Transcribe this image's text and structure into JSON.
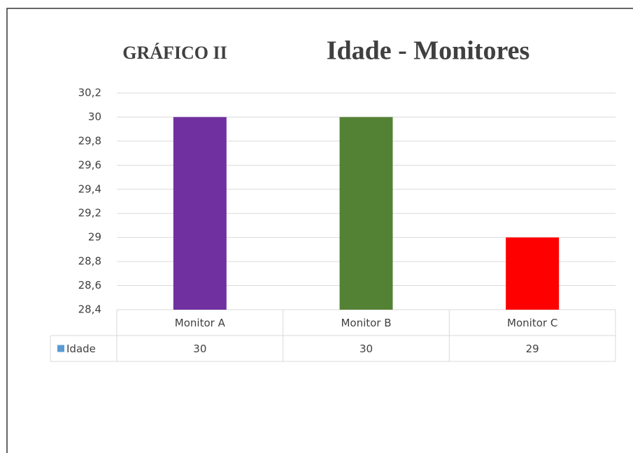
{
  "chart_data": {
    "type": "bar",
    "label": "GRÁFICO II",
    "title": "Idade - Monitores",
    "categories": [
      "Monitor A",
      "Monitor B",
      "Monitor C"
    ],
    "series": [
      {
        "name": "Idade",
        "color": "#5b9bd5",
        "point_colors": [
          "#7030a0",
          "#548235",
          "#ff0000"
        ],
        "values": [
          30,
          30,
          29
        ]
      }
    ],
    "ylim": [
      28.4,
      30.2
    ],
    "yticks": [
      {
        "value": 28.4,
        "label": "28,4"
      },
      {
        "value": 28.6,
        "label": "28,6"
      },
      {
        "value": 28.8,
        "label": "28,8"
      },
      29,
      {
        "value": 29.2,
        "label": "29,2"
      },
      {
        "value": 29.4,
        "label": "29,4"
      },
      {
        "value": 29.6,
        "label": "29,6"
      },
      {
        "value": 29.8,
        "label": "29,8"
      },
      30,
      {
        "value": 30.2,
        "label": "30,2"
      }
    ],
    "grid": true,
    "data_table": true
  }
}
